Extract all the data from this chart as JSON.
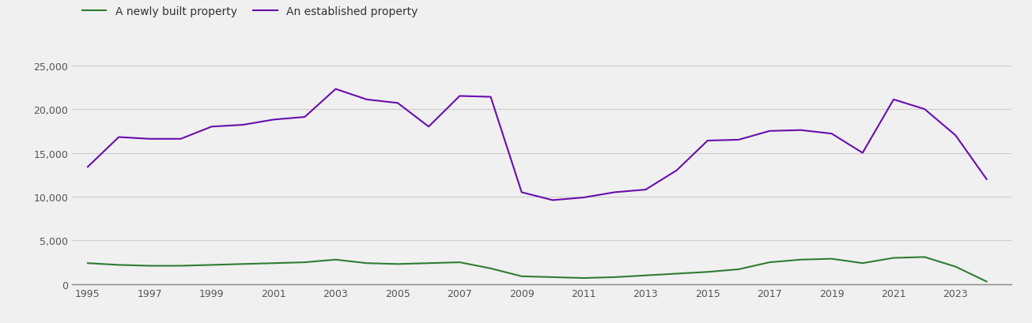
{
  "years": [
    1995,
    1996,
    1997,
    1998,
    1999,
    2000,
    2001,
    2002,
    2003,
    2004,
    2005,
    2006,
    2007,
    2008,
    2009,
    2010,
    2011,
    2012,
    2013,
    2014,
    2015,
    2016,
    2017,
    2018,
    2019,
    2020,
    2021,
    2022,
    2023,
    2024
  ],
  "new_build": [
    2400,
    2200,
    2100,
    2100,
    2200,
    2300,
    2400,
    2500,
    2800,
    2400,
    2300,
    2400,
    2500,
    1800,
    900,
    800,
    700,
    800,
    1000,
    1200,
    1400,
    1700,
    2500,
    2800,
    2900,
    2400,
    3000,
    3100,
    2000,
    300
  ],
  "established": [
    13400,
    16800,
    16600,
    16600,
    18000,
    18200,
    18800,
    19100,
    22300,
    21100,
    20700,
    18000,
    21500,
    21400,
    10500,
    9600,
    9900,
    10500,
    10800,
    13000,
    16400,
    16500,
    17500,
    17600,
    17200,
    15000,
    21100,
    20000,
    17000,
    12000
  ],
  "new_build_color": "#2e7d32",
  "established_color": "#6a0dad",
  "legend_new_build": "A newly built property",
  "legend_established": "An established property",
  "ylim": [
    0,
    27000
  ],
  "yticks": [
    0,
    5000,
    10000,
    15000,
    20000,
    25000
  ],
  "xlim": [
    1994.5,
    2024.8
  ],
  "xtick_years": [
    1995,
    1997,
    1999,
    2001,
    2003,
    2005,
    2007,
    2009,
    2011,
    2013,
    2015,
    2017,
    2019,
    2021,
    2023
  ],
  "background_color": "#f0f0f0",
  "grid_color": "#cccccc",
  "linewidth": 1.5,
  "tick_fontsize": 9,
  "legend_fontsize": 10
}
